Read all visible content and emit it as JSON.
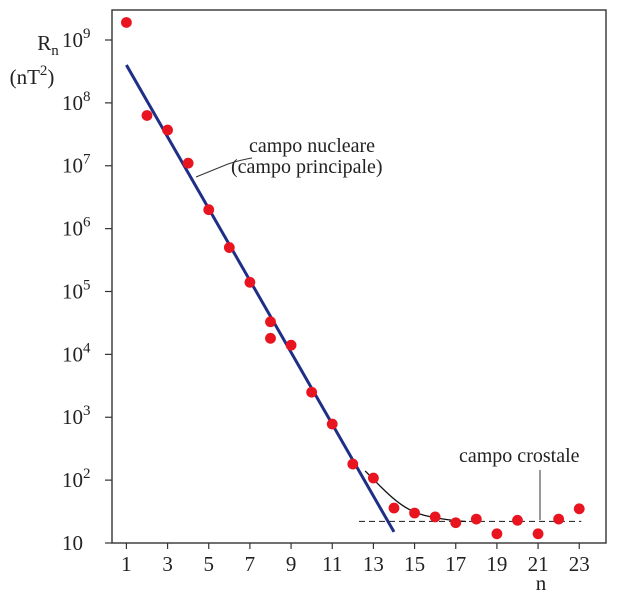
{
  "chart_data": {
    "type": "scatter",
    "y_scale": "log",
    "ylabel_main": "R",
    "ylabel_sub": "n",
    "ylabel_unit_base": "(nT",
    "ylabel_unit_exp": "2",
    "ylabel_unit_close": ")",
    "xlabel": "n",
    "xlim": [
      0.3,
      24.3
    ],
    "ylim": [
      10,
      3000000000
    ],
    "x_ticks": [
      1,
      3,
      5,
      7,
      9,
      11,
      13,
      15,
      17,
      19,
      21,
      23
    ],
    "y_ticks": [
      {
        "value": 10,
        "base": "10",
        "exp": ""
      },
      {
        "value": 100,
        "base": "10",
        "exp": "2"
      },
      {
        "value": 1000,
        "base": "10",
        "exp": "3"
      },
      {
        "value": 10000,
        "base": "10",
        "exp": "4"
      },
      {
        "value": 100000,
        "base": "10",
        "exp": "5"
      },
      {
        "value": 1000000,
        "base": "10",
        "exp": "6"
      },
      {
        "value": 10000000,
        "base": "10",
        "exp": "7"
      },
      {
        "value": 100000000,
        "base": "10",
        "exp": "8"
      },
      {
        "value": 1000000000,
        "base": "10",
        "exp": "9"
      }
    ],
    "points": [
      {
        "x": 1,
        "y": 1900000000
      },
      {
        "x": 2,
        "y": 63000000
      },
      {
        "x": 3,
        "y": 37000000
      },
      {
        "x": 4,
        "y": 11000000
      },
      {
        "x": 5,
        "y": 2000000
      },
      {
        "x": 6,
        "y": 500000
      },
      {
        "x": 7,
        "y": 140000
      },
      {
        "x": 8,
        "y": 33000
      },
      {
        "x": 8,
        "y": 18000
      },
      {
        "x": 9,
        "y": 14000
      },
      {
        "x": 10,
        "y": 2500
      },
      {
        "x": 11,
        "y": 780
      },
      {
        "x": 12,
        "y": 180
      },
      {
        "x": 13,
        "y": 108
      },
      {
        "x": 14,
        "y": 36
      },
      {
        "x": 15,
        "y": 30
      },
      {
        "x": 16,
        "y": 26
      },
      {
        "x": 17,
        "y": 21
      },
      {
        "x": 18,
        "y": 24
      },
      {
        "x": 19,
        "y": 14
      },
      {
        "x": 20,
        "y": 23
      },
      {
        "x": 21,
        "y": 14
      },
      {
        "x": 22,
        "y": 24
      },
      {
        "x": 23,
        "y": 35
      }
    ],
    "fit_line": {
      "x1": 1,
      "y1": 400000000,
      "x2": 14,
      "y2": 15
    },
    "crustal_level": {
      "x1": 12.3,
      "x2": 23.1,
      "y": 22
    },
    "transition_curve": [
      [
        12.6,
        140
      ],
      [
        14,
        48
      ],
      [
        15,
        30
      ],
      [
        16,
        25
      ],
      [
        17,
        22.5
      ],
      [
        17.5,
        22
      ]
    ],
    "annotations": {
      "nuclear_line1": "campo nucleare",
      "nuclear_line2": "(campo principale)",
      "crustal": "campo crostale"
    },
    "colors": {
      "points": "#e8141f",
      "fit_line": "#1f2e86",
      "curve": "#111111",
      "frame": "#333333"
    }
  }
}
